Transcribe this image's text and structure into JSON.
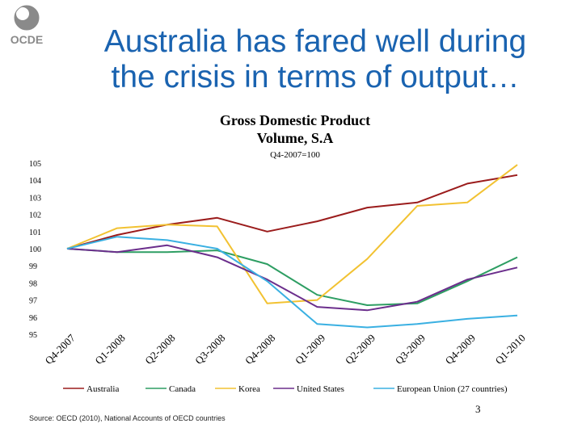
{
  "logo": {
    "text": "OCDE",
    "icon": "oecd-globe-logo-icon"
  },
  "slide": {
    "title_line1": "Australia has fared well during",
    "title_line2": "the crisis in terms of output…",
    "source": "Source: OECD (2010), National Accounts of OECD countries",
    "page_number": "3"
  },
  "colors": {
    "title": "#1a63b0"
  },
  "chart_data": {
    "type": "line",
    "title_line1": "Gross Domestic Product",
    "title_line2": "Volume, S.A",
    "subtitle": "Q4-2007=100",
    "categories": [
      "Q4-2007",
      "Q1-2008",
      "Q2-2008",
      "Q3-2008",
      "Q4-2008",
      "Q1-2009",
      "Q2-2009",
      "Q3-2009",
      "Q4-2009",
      "Q1-2010"
    ],
    "ylim": [
      95,
      105
    ],
    "yticks": [
      95,
      96,
      97,
      98,
      99,
      100,
      101,
      102,
      103,
      104,
      105
    ],
    "ytick_labels": [
      "95",
      "96",
      "97",
      "98",
      "99",
      "100",
      "101",
      "102",
      "103",
      "104",
      "105"
    ],
    "grid": false,
    "legend_position": "bottom",
    "series": [
      {
        "name": "Australia",
        "color": "#9b1c1c",
        "values": [
          100.0,
          100.8,
          101.4,
          101.8,
          101.0,
          101.6,
          102.4,
          102.7,
          103.8,
          104.3
        ]
      },
      {
        "name": "Canada",
        "color": "#2e9e63",
        "values": [
          100.0,
          99.8,
          99.8,
          99.9,
          99.1,
          97.3,
          96.7,
          96.8,
          98.1,
          99.5
        ]
      },
      {
        "name": "Korea",
        "color": "#f2c232",
        "values": [
          100.0,
          101.2,
          101.4,
          101.3,
          96.8,
          97.0,
          99.4,
          102.5,
          102.7,
          104.9
        ]
      },
      {
        "name": "United States",
        "color": "#6b2e8c",
        "values": [
          100.0,
          99.8,
          100.2,
          99.5,
          98.2,
          96.6,
          96.4,
          96.9,
          98.2,
          98.9
        ]
      },
      {
        "name": "European Union (27 countries)",
        "color": "#3ab0e2",
        "values": [
          100.0,
          100.7,
          100.5,
          100.0,
          98.1,
          95.6,
          95.4,
          95.6,
          95.9,
          96.1
        ]
      }
    ]
  }
}
